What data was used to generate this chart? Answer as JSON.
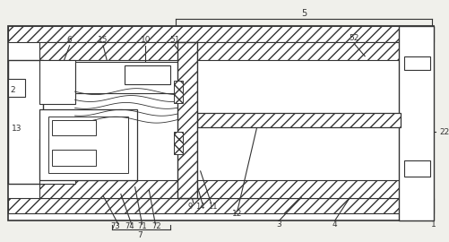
{
  "bg_color": "#f0f0eb",
  "line_color": "#333333",
  "fig_width": 5.02,
  "fig_height": 2.7,
  "dpi": 100
}
